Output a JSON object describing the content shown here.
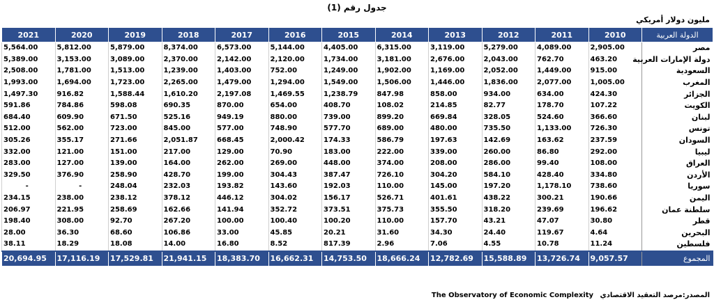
{
  "title": "جدول رقم (1)",
  "unit": "مليون دولار أمريكي",
  "header": {
    "country": "الدولة العربية",
    "years": [
      "2010",
      "2011",
      "2012",
      "2013",
      "2014",
      "2015",
      "2016",
      "2017",
      "2018",
      "2019",
      "2020",
      "2021"
    ]
  },
  "rows": [
    {
      "country": "مصر",
      "values": [
        "2,905.00",
        "4,089.00",
        "5,279.00",
        "3,119.00",
        "6,315.00",
        "4,405.00",
        "5,144.00",
        "6,573.00",
        "8,374.00",
        "5,879.00",
        "5,812.00",
        "5,564.00"
      ]
    },
    {
      "country": "دولة الإمارات العربية",
      "values": [
        "463.20",
        "762.70",
        "2,043.00",
        "2,676.00",
        "3,181.00",
        "1,734.00",
        "2,120.00",
        "2,142.00",
        "2,370.00",
        "3,089.00",
        "3,153.00",
        "5,389.00"
      ]
    },
    {
      "country": "السعودية",
      "values": [
        "915.00",
        "1,449.00",
        "2,052.00",
        "1,169.00",
        "1,902.00",
        "1,249.00",
        "752.00",
        "1,403.00",
        "1,239.00",
        "1,513.00",
        "1,781.00",
        "2,508.00"
      ]
    },
    {
      "country": "المغرب",
      "values": [
        "1,005.00",
        "2,077.00",
        "1,836.00",
        "1,446.00",
        "1,506.00",
        "1,549.00",
        "1,294.00",
        "1,479.00",
        "2,265.00",
        "1,723.00",
        "1,694.00",
        "1,993.00"
      ]
    },
    {
      "country": "الجزائر",
      "values": [
        "424.30",
        "634.00",
        "934.00",
        "858.00",
        "847.98",
        "1,238.79",
        "1,469.55",
        "2,197.08",
        "1,610.20",
        "1,588.44",
        "916.82",
        "1,497.30"
      ]
    },
    {
      "country": "الكويت",
      "values": [
        "107.22",
        "178.70",
        "82.77",
        "214.85",
        "108.02",
        "408.70",
        "654.00",
        "870.00",
        "690.35",
        "598.08",
        "784.86",
        "591.86"
      ]
    },
    {
      "country": "لبنان",
      "values": [
        "366.60",
        "524.60",
        "328.05",
        "669.84",
        "899.20",
        "739.00",
        "880.00",
        "949.19",
        "525.16",
        "671.50",
        "609.90",
        "684.40"
      ]
    },
    {
      "country": "تونس",
      "values": [
        "726.30",
        "1,133.00",
        "735.50",
        "480.00",
        "689.00",
        "577.70",
        "748.90",
        "577.00",
        "845.00",
        "723.00",
        "562.00",
        "512.00"
      ]
    },
    {
      "country": "السودان",
      "values": [
        "237.59",
        "163.62",
        "142.69",
        "197.63",
        "586.79",
        "174.33",
        "2,000.42",
        "668.45",
        "2,051.87",
        "271.66",
        "355.17",
        "305.26"
      ]
    },
    {
      "country": "ليبيا",
      "values": [
        "292.00",
        "86.80",
        "260.00",
        "339.00",
        "222.00",
        "183.00",
        "70.90",
        "129.00",
        "217.00",
        "151.00",
        "121.00",
        "332.00"
      ]
    },
    {
      "country": "العراق",
      "values": [
        "108.00",
        "99.40",
        "286.00",
        "208.00",
        "374.00",
        "448.00",
        "269.00",
        "262.00",
        "164.00",
        "139.00",
        "127.00",
        "283.00"
      ]
    },
    {
      "country": "الأردن",
      "values": [
        "334.80",
        "428.40",
        "584.10",
        "304.20",
        "726.10",
        "387.47",
        "304.43",
        "199.00",
        "428.70",
        "258.90",
        "376.90",
        "329.50"
      ]
    },
    {
      "country": "سوريا",
      "values": [
        "738.60",
        "1,178.10",
        "197.20",
        "145.00",
        "110.00",
        "192.03",
        "143.60",
        "193.82",
        "232.03",
        "248.04",
        "-",
        "-"
      ]
    },
    {
      "country": "اليمن",
      "values": [
        "190.66",
        "300.21",
        "438.22",
        "401.61",
        "526.71",
        "156.17",
        "304.02",
        "446.12",
        "378.12",
        "238.12",
        "238.00",
        "234.15"
      ]
    },
    {
      "country": "سلطنة عمان",
      "values": [
        "196.62",
        "239.69",
        "318.20",
        "355.50",
        "375.73",
        "373.51",
        "352.72",
        "141.94",
        "162.66",
        "258.69",
        "221.95",
        "206.97"
      ]
    },
    {
      "country": "قطر",
      "values": [
        "30.80",
        "47.07",
        "43.21",
        "157.70",
        "110.00",
        "100.20",
        "100.40",
        "100.00",
        "267.20",
        "92.70",
        "308.00",
        "198.40"
      ]
    },
    {
      "country": "البحرين",
      "values": [
        "4.64",
        "119.67",
        "24.40",
        "34.30",
        "31.60",
        "20.21",
        "45.85",
        "33.00",
        "106.86",
        "68.60",
        "36.30",
        "28.00"
      ]
    },
    {
      "country": "فلسطين",
      "values": [
        "11.24",
        "10.78",
        "4.55",
        "7.06",
        "2.96",
        "817.39",
        "8.52",
        "16.80",
        "14.00",
        "18.08",
        "18.29",
        "38.11"
      ]
    }
  ],
  "total": {
    "label": "المجموع",
    "values": [
      "9,057.57",
      "13,726.74",
      "15,588.89",
      "12,782.69",
      "18,666.24",
      "14,753.50",
      "16,662.31",
      "18,383.70",
      "21,941.15",
      "17,529.81",
      "17,116.19",
      "20,694.95"
    ]
  },
  "source": {
    "label": "المصدر:مرصد التعقيد الاقتصادي",
    "en": "The Observatory of Economic Complexity"
  }
}
